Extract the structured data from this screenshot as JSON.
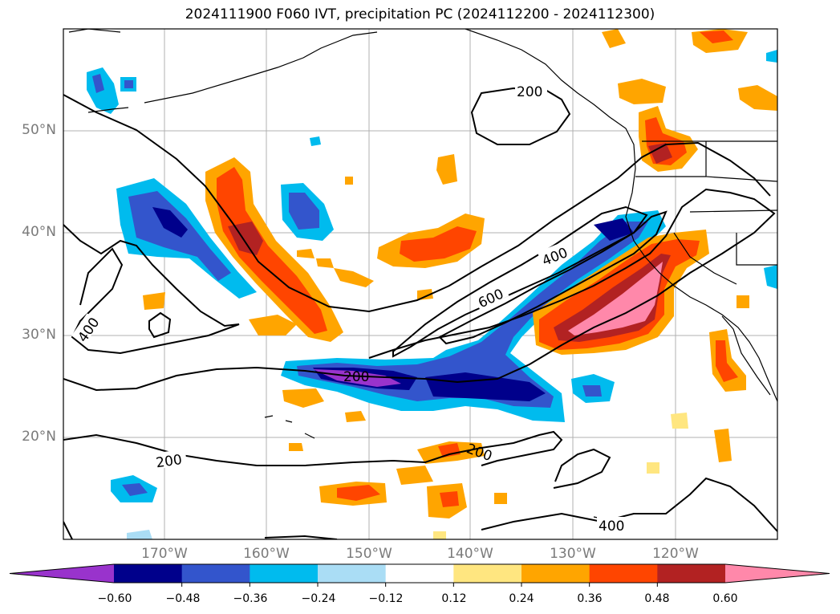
{
  "title": "2024111900 F060 IVT, precipitation PC (2024112200 - 2024112300)",
  "lat_labels": [
    "50°N",
    "40°N",
    "30°N",
    "20°N"
  ],
  "lon_labels": [
    "170°W",
    "160°W",
    "150°W",
    "140°W",
    "130°W",
    "120°W"
  ],
  "contour_labels": [
    "200",
    "400",
    "600",
    "400",
    "200",
    "200",
    "200",
    "400"
  ],
  "colorbar": {
    "ticks": [
      "−0.60",
      "−0.48",
      "−0.36",
      "−0.24",
      "−0.12",
      "0.12",
      "0.24",
      "0.36",
      "0.48",
      "0.60"
    ],
    "colors": [
      "#9933cc",
      "#00008b",
      "#3355cc",
      "#00bbee",
      "#aaddf5",
      "#ffffff",
      "#ffe680",
      "#ffa500",
      "#ff4500",
      "#b22222",
      "#ff88aa"
    ],
    "extend": "both"
  },
  "map_colors": {
    "land_line": "#000000",
    "grid": "#b0b0b0"
  }
}
